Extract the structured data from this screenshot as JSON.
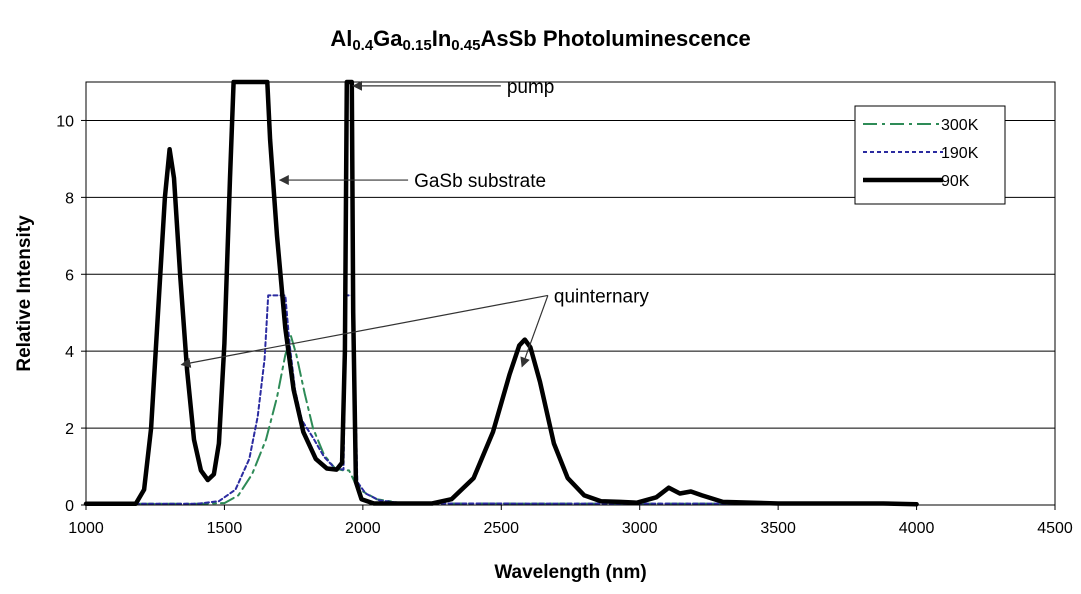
{
  "chart_data": {
    "type": "line",
    "title": {
      "parts": [
        {
          "text": "Al",
          "sub": false
        },
        {
          "text": "0.4",
          "sub": true
        },
        {
          "text": "Ga",
          "sub": false
        },
        {
          "text": "0.15",
          "sub": true
        },
        {
          "text": "In",
          "sub": false
        },
        {
          "text": "0.45",
          "sub": true
        },
        {
          "text": "AsSb Photoluminescence",
          "sub": false
        }
      ]
    },
    "xlabel": "Wavelength (nm)",
    "ylabel": "Relative Intensity",
    "xlim": [
      1000,
      4500
    ],
    "ylim": [
      0,
      11
    ],
    "xticks": [
      1000,
      1500,
      2000,
      2500,
      3000,
      3500,
      4000,
      4500
    ],
    "yticks": [
      0,
      2,
      4,
      6,
      8,
      10
    ],
    "grid": "horizontal",
    "legend_position": "top-right",
    "series": [
      {
        "name": "300K",
        "color": "#2e8b57",
        "style": "dash-dot",
        "points": [
          [
            1000,
            0.03
          ],
          [
            1400,
            0.03
          ],
          [
            1500,
            0.05
          ],
          [
            1550,
            0.25
          ],
          [
            1600,
            0.8
          ],
          [
            1650,
            1.7
          ],
          [
            1690,
            2.8
          ],
          [
            1720,
            3.9
          ],
          [
            1740,
            4.4
          ],
          [
            1760,
            3.9
          ],
          [
            1790,
            2.9
          ],
          [
            1820,
            2.0
          ],
          [
            1860,
            1.3
          ],
          [
            1900,
            0.95
          ],
          [
            1930,
            0.9
          ],
          [
            1950,
            0.9
          ],
          [
            1970,
            0.6
          ],
          [
            2000,
            0.35
          ],
          [
            2050,
            0.15
          ],
          [
            2150,
            0.04
          ],
          [
            4000,
            0.03
          ]
        ]
      },
      {
        "name": "190K",
        "color": "#2b2ba0",
        "style": "dotted",
        "points": [
          [
            1000,
            0.03
          ],
          [
            1400,
            0.03
          ],
          [
            1480,
            0.1
          ],
          [
            1540,
            0.4
          ],
          [
            1590,
            1.2
          ],
          [
            1620,
            2.3
          ],
          [
            1645,
            3.8
          ],
          [
            1658,
            5.45
          ],
          [
            1720,
            5.45
          ],
          [
            1735,
            4.2
          ],
          [
            1755,
            3.0
          ],
          [
            1780,
            2.2
          ],
          [
            1820,
            1.75
          ],
          [
            1860,
            1.25
          ],
          [
            1900,
            0.95
          ],
          [
            1930,
            0.92
          ],
          [
            1940,
            5.45
          ],
          [
            1965,
            5.45
          ],
          [
            1980,
            0.6
          ],
          [
            2010,
            0.3
          ],
          [
            2060,
            0.12
          ],
          [
            2150,
            0.04
          ],
          [
            4000,
            0.03
          ]
        ]
      },
      {
        "name": "90K",
        "color": "#000000",
        "style": "solid",
        "points": [
          [
            1000,
            0.03
          ],
          [
            1180,
            0.03
          ],
          [
            1210,
            0.4
          ],
          [
            1235,
            2.0
          ],
          [
            1260,
            5.0
          ],
          [
            1285,
            8.0
          ],
          [
            1302,
            9.25
          ],
          [
            1318,
            8.5
          ],
          [
            1340,
            6.0
          ],
          [
            1365,
            3.5
          ],
          [
            1390,
            1.7
          ],
          [
            1415,
            0.9
          ],
          [
            1440,
            0.65
          ],
          [
            1462,
            0.8
          ],
          [
            1480,
            1.6
          ],
          [
            1500,
            4.2
          ],
          [
            1520,
            8.5
          ],
          [
            1533,
            11
          ],
          [
            1655,
            11
          ],
          [
            1665,
            9.5
          ],
          [
            1690,
            7.0
          ],
          [
            1720,
            4.6
          ],
          [
            1750,
            3.0
          ],
          [
            1785,
            1.9
          ],
          [
            1830,
            1.2
          ],
          [
            1870,
            0.95
          ],
          [
            1905,
            0.92
          ],
          [
            1925,
            1.1
          ],
          [
            1935,
            4.0
          ],
          [
            1942,
            11
          ],
          [
            1960,
            11
          ],
          [
            1965,
            5.0
          ],
          [
            1975,
            0.6
          ],
          [
            1995,
            0.15
          ],
          [
            2040,
            0.04
          ],
          [
            2250,
            0.04
          ],
          [
            2320,
            0.15
          ],
          [
            2400,
            0.7
          ],
          [
            2470,
            1.9
          ],
          [
            2530,
            3.4
          ],
          [
            2565,
            4.15
          ],
          [
            2585,
            4.3
          ],
          [
            2605,
            4.1
          ],
          [
            2640,
            3.2
          ],
          [
            2690,
            1.6
          ],
          [
            2740,
            0.7
          ],
          [
            2800,
            0.25
          ],
          [
            2860,
            0.1
          ],
          [
            2930,
            0.08
          ],
          [
            2990,
            0.06
          ],
          [
            3060,
            0.2
          ],
          [
            3105,
            0.45
          ],
          [
            3145,
            0.3
          ],
          [
            3185,
            0.35
          ],
          [
            3225,
            0.25
          ],
          [
            3300,
            0.08
          ],
          [
            3500,
            0.04
          ],
          [
            3880,
            0.04
          ],
          [
            4000,
            0.02
          ]
        ]
      }
    ],
    "annotations": [
      {
        "text": "pump",
        "arrow_to": [
          [
            1965,
            10.9
          ]
        ],
        "anchor": [
          2520,
          10.9
        ]
      },
      {
        "text": "GaSb substrate",
        "arrow_to": [
          [
            1700,
            8.45
          ]
        ],
        "anchor": [
          2185,
          8.45
        ]
      },
      {
        "text": "quinternary",
        "arrow_to": [
          [
            1345,
            3.65
          ],
          [
            2575,
            3.6
          ]
        ],
        "anchor": [
          2690,
          5.45
        ]
      }
    ]
  }
}
